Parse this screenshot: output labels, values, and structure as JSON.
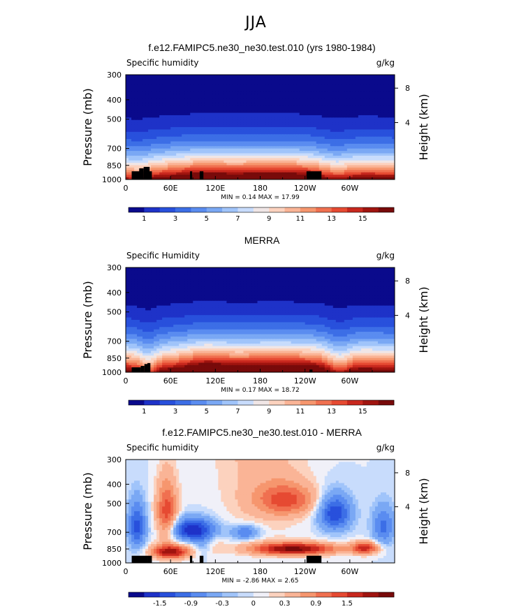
{
  "figure_title": "JJA",
  "colors": {
    "abs_levels": [
      "#0a0a8c",
      "#1e32c8",
      "#2850dc",
      "#3c6ee6",
      "#5a8cf0",
      "#7aa8f4",
      "#a0c4fa",
      "#c8dcfc",
      "#f0e6e6",
      "#fcd2be",
      "#fab496",
      "#f6966e",
      "#f07050",
      "#e64a32",
      "#c8281e",
      "#a0140f",
      "#780a0a"
    ],
    "diff_levels": [
      "#0a0a8c",
      "#1e32c8",
      "#2850dc",
      "#3c6ee6",
      "#5a8cf0",
      "#7aa8f4",
      "#a0c4fa",
      "#c8dcfc",
      "#f0f0f8",
      "#fcd2be",
      "#fab496",
      "#f6966e",
      "#f07050",
      "#e64a32",
      "#c8281e",
      "#a0140f",
      "#780a0a"
    ],
    "terrain": "#000000"
  },
  "chart_data": [
    {
      "type": "heatmap",
      "title": "f.e12.FAMIPC5.ne30_ne30.test.010 (yrs 1980-1984)",
      "left_label": "Specific humidity",
      "units_label": "g/kg",
      "ylabel": "Pressure (mb)",
      "y2label": "Height (km)",
      "x_ticks": [
        "0",
        "60E",
        "120E",
        "180",
        "120W",
        "60W"
      ],
      "x_tick_lon": [
        0,
        60,
        120,
        180,
        240,
        300
      ],
      "y_ticks": [
        300,
        400,
        500,
        700,
        850,
        1000
      ],
      "y2_ticks": [
        "8",
        "4"
      ],
      "stats": "MIN =    0.14   MAX =   17.99",
      "min": 0.14,
      "max": 17.99,
      "colorbar_labels": [
        "1",
        "3",
        "5",
        "7",
        "9",
        "11",
        "13",
        "15"
      ],
      "mode": "model"
    },
    {
      "type": "heatmap",
      "title": "MERRA",
      "left_label": "Specific Humidity",
      "units_label": "g/kg",
      "ylabel": "Pressure (mb)",
      "y2label": "Height (km)",
      "x_ticks": [
        "0",
        "60E",
        "120E",
        "180",
        "120W",
        "60W"
      ],
      "x_tick_lon": [
        0,
        60,
        120,
        180,
        240,
        300
      ],
      "y_ticks": [
        300,
        400,
        500,
        700,
        850,
        1000
      ],
      "y2_ticks": [
        "8",
        "4"
      ],
      "stats": "MIN =    0.17   MAX =   18.72",
      "min": 0.17,
      "max": 18.72,
      "colorbar_labels": [
        "1",
        "3",
        "5",
        "7",
        "9",
        "11",
        "13",
        "15"
      ],
      "mode": "obs"
    },
    {
      "type": "heatmap",
      "title": "f.e12.FAMIPC5.ne30_ne30.test.010 - MERRA",
      "left_label": "Specific humidity",
      "units_label": "g/kg",
      "ylabel": "Pressure (mb)",
      "y2label": "Height (km)",
      "x_ticks": [
        "0",
        "60E",
        "120E",
        "180",
        "120W",
        "60W"
      ],
      "x_tick_lon": [
        0,
        60,
        120,
        180,
        240,
        300
      ],
      "y_ticks": [
        300,
        400,
        500,
        700,
        850,
        1000
      ],
      "y2_ticks": [
        "8",
        "4"
      ],
      "stats": "MIN =   -2.86   MAX =    2.65",
      "min": -2.86,
      "max": 2.65,
      "colorbar_labels": [
        "-1.5",
        "-0.9",
        "-0.3",
        "0",
        "0.3",
        "0.9",
        "1.5"
      ],
      "mode": "diff"
    }
  ]
}
